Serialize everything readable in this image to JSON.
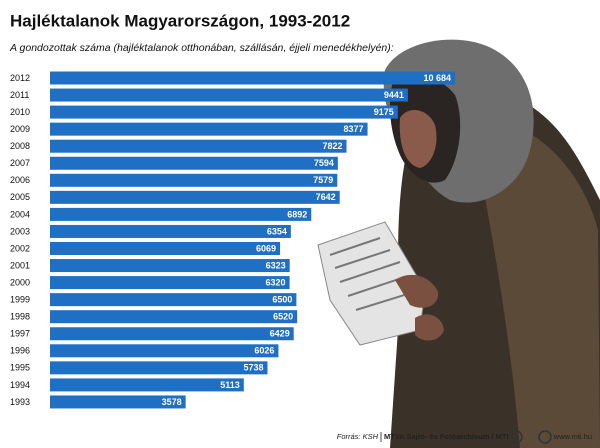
{
  "chart_data": {
    "type": "bar",
    "orientation": "horizontal",
    "title": "Hajléktalanok Magyarországon, 1993-2012",
    "subtitle": "A gondozottak száma (hajléktalanok otthonában, szállásán, éjjeli menedékhelyén):",
    "categories": [
      "2012",
      "2011",
      "2010",
      "2009",
      "2008",
      "2007",
      "2006",
      "2005",
      "2004",
      "2003",
      "2002",
      "2001",
      "2000",
      "1999",
      "1998",
      "1997",
      "1996",
      "1995",
      "1994",
      "1993"
    ],
    "values": [
      10684,
      9441,
      9175,
      8377,
      7822,
      7594,
      7579,
      7642,
      6892,
      6354,
      6069,
      6323,
      6320,
      6500,
      6520,
      6429,
      6026,
      5738,
      5113,
      3578
    ],
    "value_labels": [
      "10 684",
      "9441",
      "9175",
      "8377",
      "7822",
      "7594",
      "7579",
      "7642",
      "6892",
      "6354",
      "6069",
      "6323",
      "6320",
      "6500",
      "6520",
      "6429",
      "6026",
      "5738",
      "5113",
      "3578"
    ],
    "color": "#1f6fc4",
    "source": "Forrás: KSH",
    "credit": "MTVA Sajtó- és Fotóarchívum / MTI",
    "url": "www.mti.hu"
  }
}
